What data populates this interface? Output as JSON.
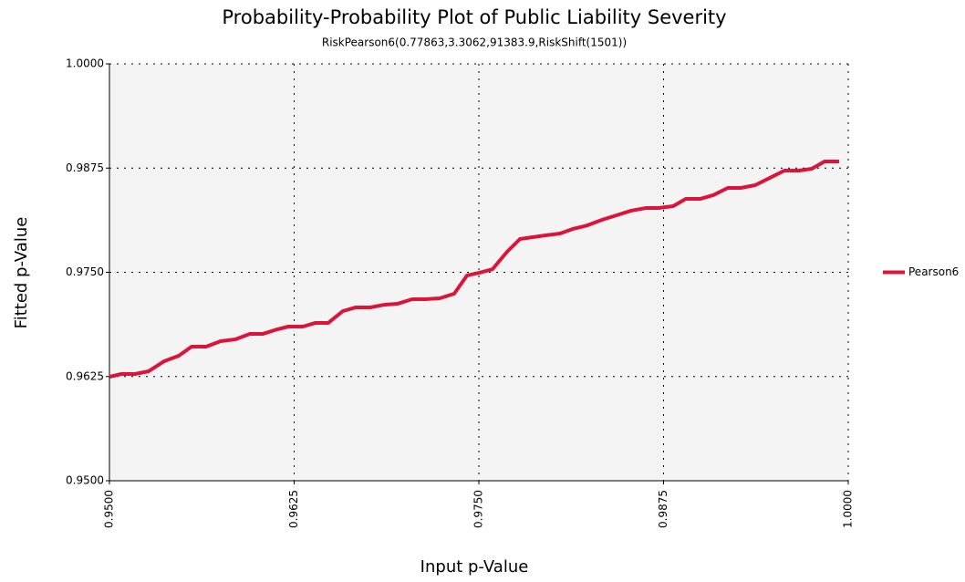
{
  "chart_data": {
    "type": "line",
    "title": "Probability-Probability Plot of Public Liability Severity",
    "subtitle": "RiskPearson6(0.77863,3.3062,91383.9,RiskShift(1501))",
    "x_label": "Input p-Value",
    "y_label": "Fitted p-Value",
    "x": [
      0.95,
      0.9508,
      0.95173,
      0.95265,
      0.9537,
      0.95469,
      0.95556,
      0.95654,
      0.95753,
      0.95852,
      0.95951,
      0.96037,
      0.96136,
      0.9621,
      0.96309,
      0.96395,
      0.96481,
      0.9658,
      0.96667,
      0.96765,
      0.96864,
      0.96951,
      0.97049,
      0.97136,
      0.97235,
      0.97333,
      0.9742,
      0.97506,
      0.97593,
      0.97691,
      0.97778,
      0.97864,
      0.97951,
      0.98049,
      0.98136,
      0.98235,
      0.98333,
      0.98432,
      0.98531,
      0.9863,
      0.98716,
      0.98815,
      0.98901,
      0.99,
      0.99086,
      0.99185,
      0.99272,
      0.9937,
      0.99481,
      0.99568,
      0.99667,
      0.99753,
      0.9984,
      0.99938
    ],
    "series": [
      {
        "name": "Pearson6",
        "color": "#dc143c",
        "values": [
          0.96247,
          0.9628,
          0.9628,
          0.96313,
          0.96433,
          0.96499,
          0.96608,
          0.96608,
          0.96674,
          0.96696,
          0.96761,
          0.96761,
          0.96816,
          0.96849,
          0.96849,
          0.96893,
          0.96893,
          0.97035,
          0.97079,
          0.97079,
          0.97112,
          0.97123,
          0.97177,
          0.97177,
          0.97188,
          0.97243,
          0.97462,
          0.97495,
          0.97538,
          0.97746,
          0.97899,
          0.97921,
          0.97943,
          0.97965,
          0.9802,
          0.98063,
          0.98129,
          0.98184,
          0.98239,
          0.98271,
          0.98271,
          0.98293,
          0.98381,
          0.98381,
          0.98425,
          0.98512,
          0.98512,
          0.98545,
          0.98643,
          0.9872,
          0.9872,
          0.98742,
          0.98829,
          0.98829
        ]
      }
    ],
    "xlim": [
      0.95,
      1.0
    ],
    "xticks": [
      {
        "value": 0.95,
        "label": "0.9500"
      },
      {
        "value": 0.9625,
        "label": "0.9625"
      },
      {
        "value": 0.975,
        "label": "0.9750"
      },
      {
        "value": 0.9875,
        "label": "0.9875"
      },
      {
        "value": 1.0,
        "label": "1.0000"
      }
    ],
    "ylim": [
      0.95,
      1.0
    ],
    "yticks": [
      {
        "value": 0.95,
        "label": "0.9500"
      },
      {
        "value": 0.9625,
        "label": "0.9625"
      },
      {
        "value": 0.975,
        "label": "0.9750"
      },
      {
        "value": 0.9875,
        "label": "0.9875"
      },
      {
        "value": 1.0,
        "label": "1.0000"
      }
    ],
    "grid": true,
    "legend": "right"
  }
}
